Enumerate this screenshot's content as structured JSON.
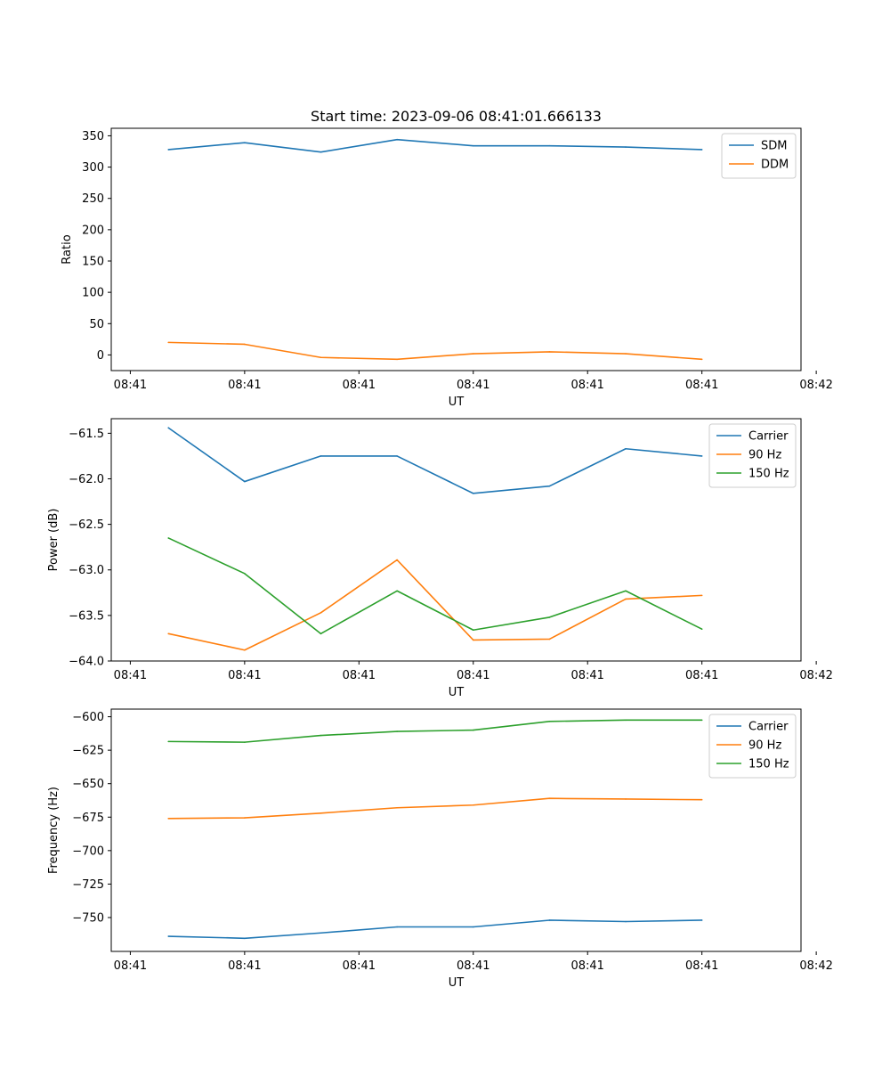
{
  "chart_data": [
    {
      "type": "line",
      "title": "Start time: 2023-09-06 08:41:01.666133",
      "xlabel": "UT",
      "ylabel": "Ratio",
      "x": [
        1,
        2,
        3,
        4,
        5,
        6,
        7,
        8
      ],
      "xlim": [
        0.25,
        9.3
      ],
      "x_ticks": [
        0.5,
        2,
        3.5,
        5,
        6.5,
        8,
        9.5
      ],
      "x_tick_labels": [
        "08:41",
        "08:41",
        "08:41",
        "08:41",
        "08:41",
        "08:41",
        "08:42"
      ],
      "ylim": [
        -25,
        362
      ],
      "y_ticks": [
        0,
        50,
        100,
        150,
        200,
        250,
        300,
        350
      ],
      "y_tick_labels": [
        "0",
        "50",
        "100",
        "150",
        "200",
        "250",
        "300",
        "350"
      ],
      "legend_position": "top-right",
      "series": [
        {
          "name": "SDM",
          "color": "#1f77b4",
          "values": [
            328,
            339,
            324,
            344,
            334,
            334,
            332,
            328
          ]
        },
        {
          "name": "DDM",
          "color": "#ff7f0e",
          "values": [
            20,
            17,
            -4,
            -7,
            2,
            5,
            2,
            -7
          ]
        }
      ]
    },
    {
      "type": "line",
      "title": "",
      "xlabel": "UT",
      "ylabel": "Power (dB)",
      "x": [
        1,
        2,
        3,
        4,
        5,
        6,
        7,
        8
      ],
      "xlim": [
        0.25,
        9.3
      ],
      "x_ticks": [
        0.5,
        2,
        3.5,
        5,
        6.5,
        8,
        9.5
      ],
      "x_tick_labels": [
        "08:41",
        "08:41",
        "08:41",
        "08:41",
        "08:41",
        "08:41",
        "08:42"
      ],
      "ylim": [
        -64.0,
        -61.34
      ],
      "y_ticks": [
        -64.0,
        -63.5,
        -63.0,
        -62.5,
        -62.0,
        -61.5
      ],
      "y_tick_labels": [
        "−64.0",
        "−63.5",
        "−63.0",
        "−62.5",
        "−62.0",
        "−61.5"
      ],
      "legend_position": "top-right",
      "series": [
        {
          "name": "Carrier",
          "color": "#1f77b4",
          "values": [
            -61.44,
            -62.03,
            -61.75,
            -61.75,
            -62.16,
            -62.08,
            -61.67,
            -61.75
          ]
        },
        {
          "name": "90 Hz",
          "color": "#ff7f0e",
          "values": [
            -63.7,
            -63.88,
            -63.47,
            -62.89,
            -63.77,
            -63.76,
            -63.32,
            -63.28
          ]
        },
        {
          "name": "150 Hz",
          "color": "#2ca02c",
          "values": [
            -62.65,
            -63.04,
            -63.7,
            -63.23,
            -63.66,
            -63.52,
            -63.23,
            -63.65
          ]
        }
      ]
    },
    {
      "type": "line",
      "title": "",
      "xlabel": "UT",
      "ylabel": "Frequency (Hz)",
      "x": [
        1,
        2,
        3,
        4,
        5,
        6,
        7,
        8
      ],
      "xlim": [
        0.25,
        9.3
      ],
      "x_ticks": [
        0.5,
        2,
        3.5,
        5,
        6.5,
        8,
        9.5
      ],
      "x_tick_labels": [
        "08:41",
        "08:41",
        "08:41",
        "08:41",
        "08:41",
        "08:41",
        "08:42"
      ],
      "ylim": [
        -775.3,
        -594.3
      ],
      "y_ticks": [
        -750,
        -725,
        -700,
        -675,
        -650,
        -625,
        -600
      ],
      "y_tick_labels": [
        "−750",
        "−725",
        "−700",
        "−675",
        "−650",
        "−625",
        "−600"
      ],
      "legend_position": "top-right",
      "series": [
        {
          "name": "Carrier",
          "color": "#1f77b4",
          "values": [
            -764,
            -765.5,
            -761.5,
            -757,
            -757,
            -752,
            -753,
            -752
          ]
        },
        {
          "name": "90 Hz",
          "color": "#ff7f0e",
          "values": [
            -676,
            -675.5,
            -672,
            -668,
            -666,
            -661,
            -661.5,
            -662
          ]
        },
        {
          "name": "150 Hz",
          "color": "#2ca02c",
          "values": [
            -618.5,
            -619,
            -614,
            -611,
            -610,
            -603.5,
            -602.5,
            -602.5
          ]
        }
      ]
    }
  ]
}
